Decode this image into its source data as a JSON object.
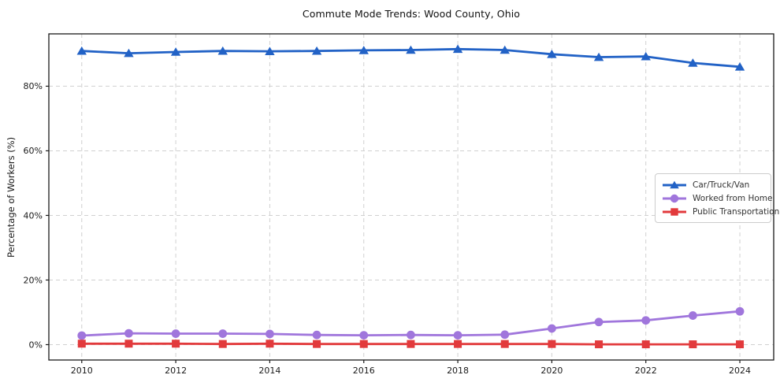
{
  "chart_data": {
    "type": "line",
    "title": "Commute Mode Trends: Wood County, Ohio",
    "xlabel": "",
    "ylabel": "Percentage of Workers (%)",
    "x": [
      2010,
      2011,
      2012,
      2013,
      2014,
      2015,
      2016,
      2017,
      2018,
      2019,
      2020,
      2021,
      2022,
      2023,
      2024
    ],
    "series": [
      {
        "name": "Car/Truck/Van",
        "color": "#2262c6",
        "marker": "triangle",
        "values": [
          90.9,
          90.2,
          90.6,
          90.9,
          90.8,
          90.9,
          91.1,
          91.2,
          91.5,
          91.2,
          89.9,
          89.0,
          89.2,
          87.2,
          86.0
        ]
      },
      {
        "name": "Worked from Home",
        "color": "#a076dc",
        "marker": "circle",
        "values": [
          2.8,
          3.5,
          3.4,
          3.4,
          3.3,
          3.0,
          2.9,
          3.0,
          2.9,
          3.1,
          5.0,
          7.0,
          7.5,
          9.0,
          10.3
        ]
      },
      {
        "name": "Public Transportation",
        "color": "#e23a3c",
        "marker": "square",
        "values": [
          0.3,
          0.3,
          0.3,
          0.2,
          0.3,
          0.2,
          0.2,
          0.2,
          0.2,
          0.2,
          0.2,
          0.1,
          0.1,
          0.1,
          0.1
        ]
      }
    ],
    "xticks": [
      2010,
      2012,
      2014,
      2016,
      2018,
      2020,
      2022,
      2024
    ],
    "yticks": [
      0,
      20,
      40,
      60,
      80
    ],
    "ytick_suffix": "%",
    "xlim": [
      2009.3,
      2024.72
    ],
    "ylim": [
      -4.76,
      96.2
    ],
    "grid": true,
    "grid_style": "dashed",
    "legend_position": "center-right"
  },
  "colors": {
    "car_truck_van": "#2262c6",
    "worked_from_home": "#a076dc",
    "public_transportation": "#e23a3c",
    "grid": "#cccccc",
    "axis": "#1a1a1a",
    "background": "#ffffff"
  }
}
